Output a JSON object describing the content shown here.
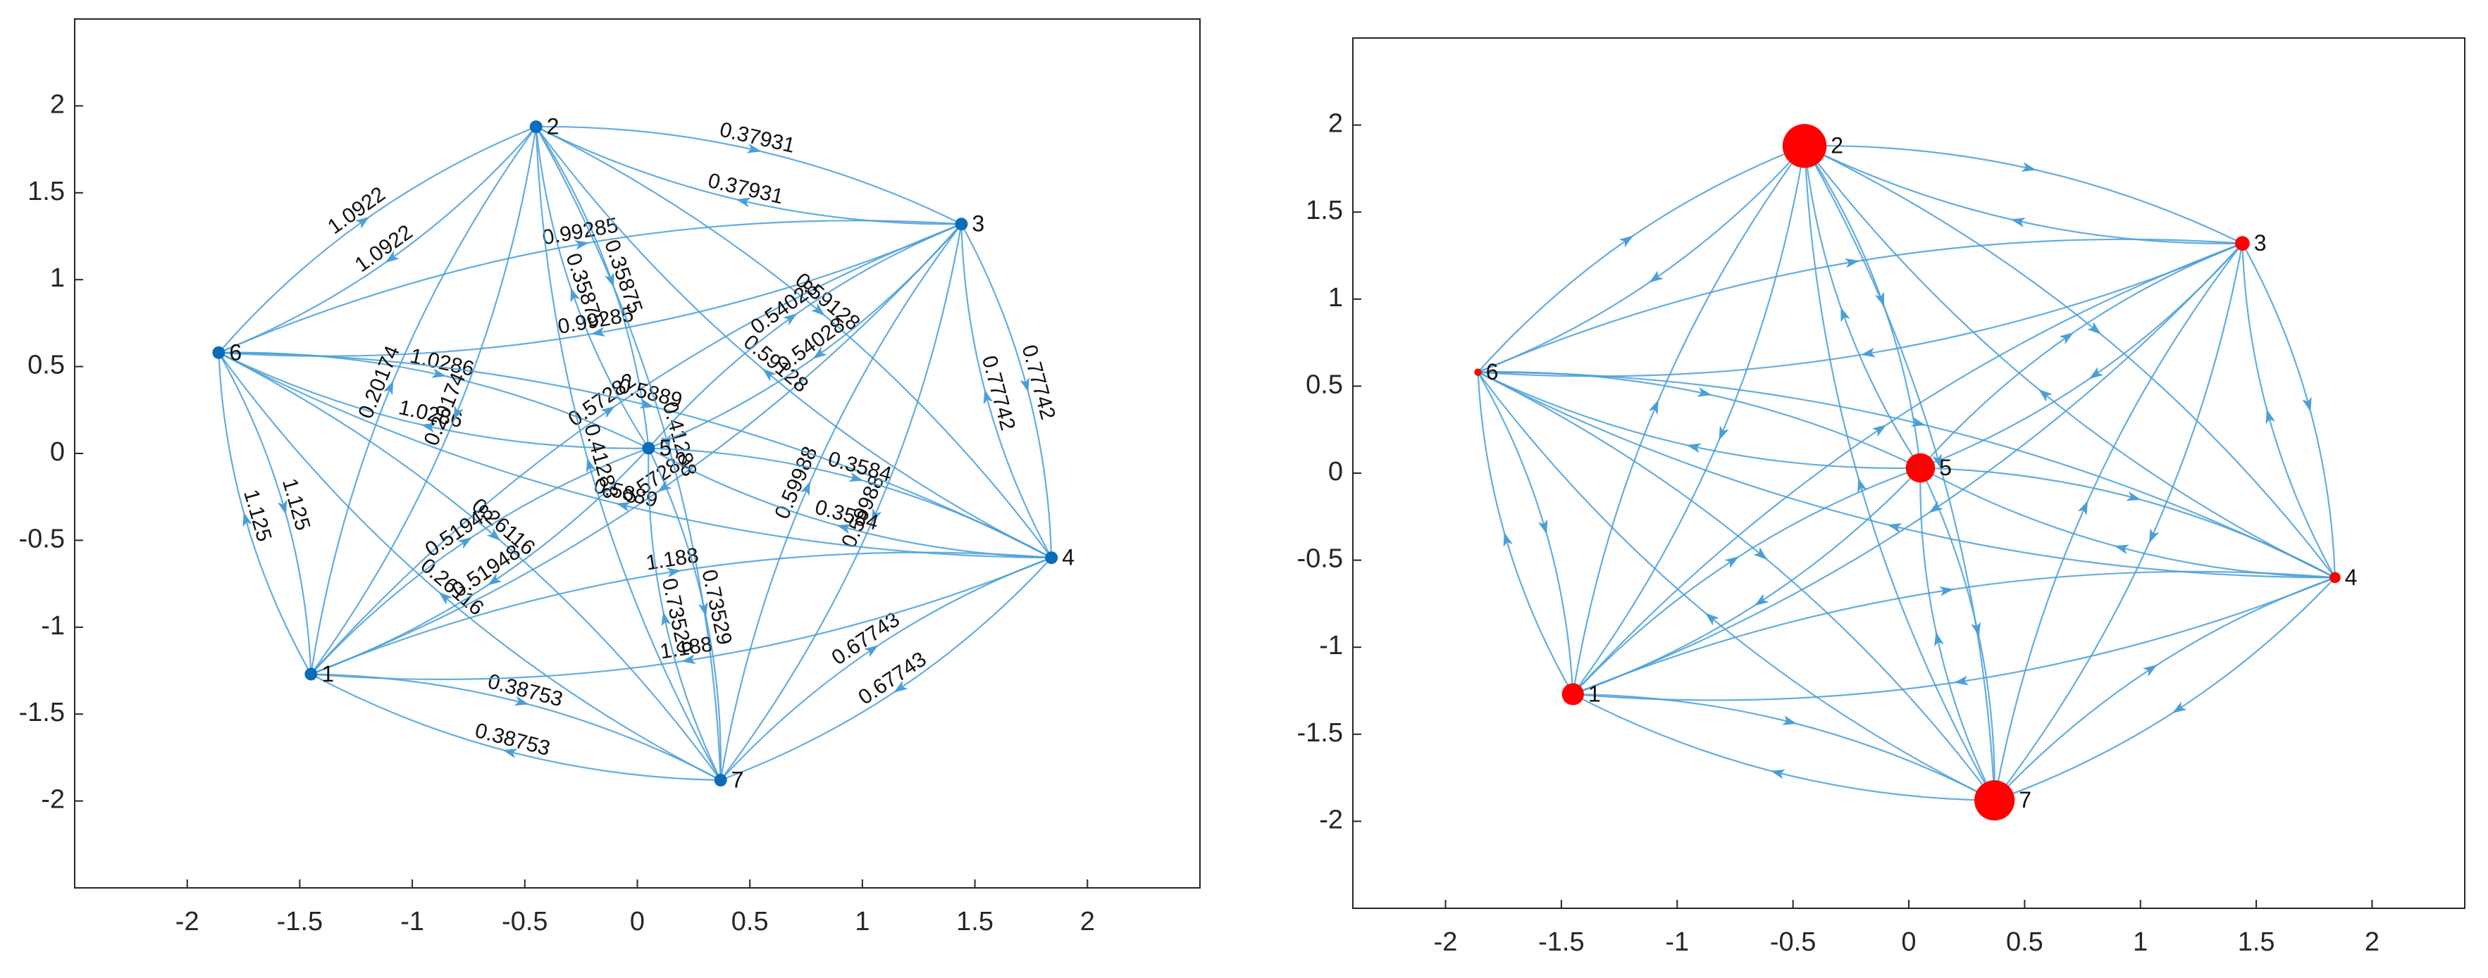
{
  "chart_data": [
    {
      "type": "network",
      "color": "#4a9fd8",
      "node_color": "#0b6cb8",
      "nodes": {
        "labels": [
          "1",
          "2",
          "3",
          "4",
          "5",
          "6",
          "7"
        ],
        "x": [
          -1.45,
          -0.45,
          1.44,
          1.84,
          0.05,
          -1.86,
          0.37
        ],
        "y": [
          -1.27,
          1.88,
          1.32,
          -0.6,
          0.03,
          0.58,
          -1.88
        ]
      },
      "edges": {
        "source": [
          "6",
          "2",
          "6",
          "1",
          "7",
          "4",
          "2",
          "6",
          "6",
          "6",
          "3",
          "3",
          "6",
          "1",
          "2",
          "1",
          "5",
          "2",
          "5",
          "1",
          "5"
        ],
        "target": [
          "2",
          "3",
          "1",
          "7",
          "4",
          "3",
          "5",
          "3",
          "5",
          "7",
          "1",
          "7",
          "4",
          "5",
          "7",
          "4",
          "7",
          "4",
          "4",
          "2",
          "3"
        ],
        "weights": [
          1.0922,
          0.37931,
          1.125,
          0.38753,
          0.67743,
          0.77742,
          0.35875,
          0.99285,
          1.0286,
          0.26116,
          0.57282,
          0.59988,
          0.5889,
          0.51948,
          0.41288,
          1.188,
          0.73529,
          0.59128,
          0.3584,
          0.20174,
          0.54028
        ]
      },
      "xlim": [
        -2.5,
        2.5
      ],
      "ylim": [
        -2.5,
        2.5
      ],
      "xticks": [
        -2,
        -1.5,
        -1,
        -0.5,
        0,
        0.5,
        1,
        1.5,
        2
      ],
      "yticks": [
        -2,
        -1.5,
        -1,
        -0.5,
        0,
        0.5,
        1,
        1.5,
        2
      ]
    },
    {
      "type": "network",
      "color": "#4a9fd8",
      "node_color": "#ff0000",
      "nodes": {
        "labels": [
          "1",
          "2",
          "3",
          "4",
          "5",
          "6",
          "7"
        ],
        "x": [
          -1.45,
          -0.45,
          1.44,
          1.84,
          0.05,
          -1.86,
          0.37
        ],
        "y": [
          -1.27,
          1.88,
          1.32,
          -0.6,
          0.03,
          0.58,
          -1.88
        ],
        "sizes": [
          6,
          12,
          4,
          3,
          8,
          2,
          11
        ]
      },
      "edges": {
        "source": [
          "6",
          "2",
          "6",
          "1",
          "7",
          "4",
          "2",
          "6",
          "6",
          "6",
          "3",
          "3",
          "6",
          "1",
          "2",
          "1",
          "5",
          "2",
          "5",
          "1",
          "5"
        ],
        "target": [
          "2",
          "3",
          "1",
          "7",
          "4",
          "3",
          "5",
          "3",
          "5",
          "7",
          "1",
          "7",
          "4",
          "5",
          "7",
          "4",
          "7",
          "4",
          "4",
          "2",
          "3"
        ]
      },
      "xlim": [
        -2.4,
        2.4
      ],
      "ylim": [
        -2.5,
        2.5
      ],
      "xticks": [
        -2,
        -1.5,
        -1,
        -0.5,
        0,
        0.5,
        1,
        1.5,
        2
      ],
      "yticks": [
        -2,
        -1.5,
        -1,
        -0.5,
        0,
        0.5,
        1,
        1.5,
        2
      ]
    }
  ]
}
